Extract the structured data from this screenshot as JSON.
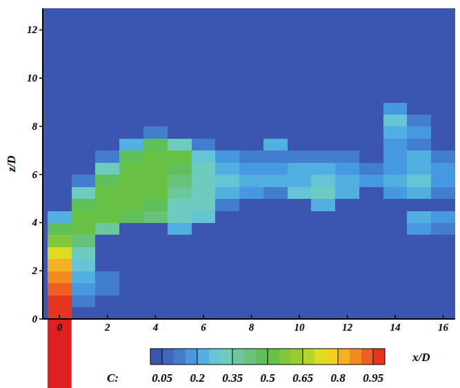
{
  "chart_data": {
    "type": "heatmap",
    "x_label": "x/D",
    "y_label": "z/D",
    "xlim": [
      -0.7,
      16.5
    ],
    "ylim": [
      0,
      12.9
    ],
    "xticks": [
      0,
      2,
      4,
      6,
      8,
      10,
      12,
      14,
      16
    ],
    "yticks": [
      0,
      2,
      4,
      6,
      8,
      10,
      12
    ],
    "x": [
      0,
      1,
      2,
      3,
      4,
      5,
      6,
      7,
      8,
      9,
      10,
      11,
      12,
      13,
      14,
      15,
      16
    ],
    "y": [
      0.25,
      0.75,
      1.25,
      1.75,
      2.25,
      2.75,
      3.25,
      3.75,
      4.25,
      4.75,
      5.25,
      5.75,
      6.25,
      6.75,
      7.25,
      7.75,
      8.25,
      8.75,
      9.25,
      9.75,
      10.25,
      10.75,
      11.25,
      11.75,
      12.25
    ],
    "cells": [
      [
        0.95,
        0,
        0,
        0,
        0,
        0,
        0,
        0,
        0,
        0,
        0,
        0,
        0,
        0,
        0,
        0,
        0
      ],
      [
        0.95,
        0.1,
        0,
        0,
        0,
        0,
        0,
        0,
        0,
        0,
        0,
        0,
        0,
        0,
        0,
        0,
        0
      ],
      [
        0.9,
        0.15,
        0.1,
        0,
        0,
        0,
        0,
        0,
        0,
        0,
        0,
        0,
        0,
        0,
        0,
        0,
        0
      ],
      [
        0.85,
        0.2,
        0.1,
        0,
        0,
        0,
        0,
        0,
        0,
        0,
        0,
        0,
        0,
        0,
        0,
        0,
        0
      ],
      [
        0.8,
        0.25,
        0,
        0,
        0,
        0,
        0,
        0,
        0,
        0,
        0,
        0,
        0,
        0,
        0,
        0,
        0
      ],
      [
        0.7,
        0.3,
        0,
        0,
        0,
        0,
        0,
        0,
        0,
        0,
        0,
        0,
        0,
        0,
        0,
        0,
        0
      ],
      [
        0.55,
        0.4,
        0,
        0,
        0,
        0,
        0,
        0,
        0,
        0,
        0,
        0,
        0,
        0,
        0,
        0,
        0
      ],
      [
        0.45,
        0.5,
        0.35,
        0,
        0,
        0.2,
        0,
        0,
        0,
        0,
        0,
        0,
        0,
        0,
        0,
        0.15,
        0.1
      ],
      [
        0.2,
        0.5,
        0.5,
        0.45,
        0.4,
        0.3,
        0.25,
        0,
        0,
        0,
        0,
        0,
        0,
        0,
        0,
        0.2,
        0.15
      ],
      [
        0,
        0.45,
        0.5,
        0.5,
        0.45,
        0.3,
        0.3,
        0.1,
        0,
        0,
        0,
        0.2,
        0,
        0,
        0,
        0,
        0
      ],
      [
        0,
        0.3,
        0.5,
        0.5,
        0.5,
        0.35,
        0.3,
        0.2,
        0.15,
        0.1,
        0.25,
        0.3,
        0.2,
        0,
        0.15,
        0.2,
        0.1
      ],
      [
        0,
        0.1,
        0.45,
        0.5,
        0.5,
        0.4,
        0.3,
        0.25,
        0.2,
        0.2,
        0.2,
        0.25,
        0.2,
        0.15,
        0.2,
        0.25,
        0.15
      ],
      [
        0,
        0,
        0.3,
        0.5,
        0.5,
        0.45,
        0.3,
        0.2,
        0.15,
        0.15,
        0.2,
        0.2,
        0.15,
        0.1,
        0.15,
        0.2,
        0.15
      ],
      [
        0,
        0,
        0.1,
        0.45,
        0.5,
        0.5,
        0.25,
        0.15,
        0.1,
        0.1,
        0.1,
        0.1,
        0.1,
        0,
        0.15,
        0.2,
        0.1
      ],
      [
        0,
        0,
        0,
        0.2,
        0.45,
        0.3,
        0.1,
        0,
        0,
        0.2,
        0,
        0,
        0,
        0,
        0.15,
        0.1,
        0
      ],
      [
        0,
        0,
        0,
        0,
        0.1,
        0,
        0,
        0,
        0,
        0,
        0,
        0,
        0,
        0,
        0.2,
        0.15,
        0
      ],
      [
        0,
        0,
        0,
        0,
        0,
        0,
        0,
        0,
        0,
        0,
        0,
        0,
        0,
        0,
        0.25,
        0.1,
        0
      ],
      [
        0,
        0,
        0,
        0,
        0,
        0,
        0,
        0,
        0,
        0,
        0,
        0,
        0,
        0,
        0.15,
        0,
        0
      ],
      [
        0,
        0,
        0,
        0,
        0,
        0,
        0,
        0,
        0,
        0,
        0,
        0,
        0,
        0,
        0,
        0,
        0
      ],
      [
        0,
        0,
        0,
        0,
        0,
        0,
        0,
        0,
        0,
        0,
        0,
        0,
        0,
        0,
        0,
        0,
        0
      ],
      [
        0,
        0,
        0,
        0,
        0,
        0,
        0,
        0,
        0,
        0,
        0,
        0,
        0,
        0,
        0,
        0,
        0
      ],
      [
        0,
        0,
        0,
        0,
        0,
        0,
        0,
        0,
        0,
        0,
        0,
        0,
        0,
        0,
        0,
        0,
        0
      ],
      [
        0,
        0,
        0,
        0,
        0,
        0,
        0,
        0,
        0,
        0,
        0,
        0,
        0,
        0,
        0,
        0,
        0
      ],
      [
        0,
        0,
        0,
        0,
        0,
        0,
        0,
        0,
        0,
        0,
        0,
        0,
        0,
        0,
        0,
        0,
        0
      ],
      [
        0,
        0,
        0,
        0,
        0,
        0,
        0,
        0,
        0,
        0,
        0,
        0,
        0,
        0,
        0,
        0,
        0
      ]
    ],
    "colorbar": {
      "label": "C:",
      "range": [
        0,
        1
      ],
      "ticks": [
        0.05,
        0.2,
        0.35,
        0.5,
        0.65,
        0.8,
        0.95
      ]
    }
  }
}
